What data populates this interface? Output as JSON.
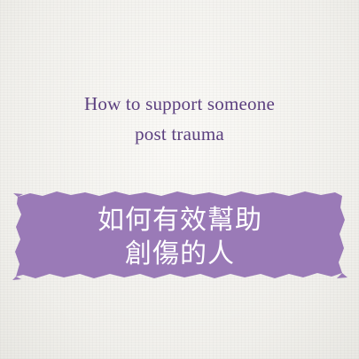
{
  "heading_en": {
    "line1": "How to support someone",
    "line2": "post trauma"
  },
  "heading_zh": {
    "line1": "如何有效幫助",
    "line2": "創傷的人"
  },
  "colors": {
    "background": "#f3f2ee",
    "heading_en": "#5b3f7f",
    "banner": "#9a7ab7",
    "heading_zh": "#ffffff"
  }
}
